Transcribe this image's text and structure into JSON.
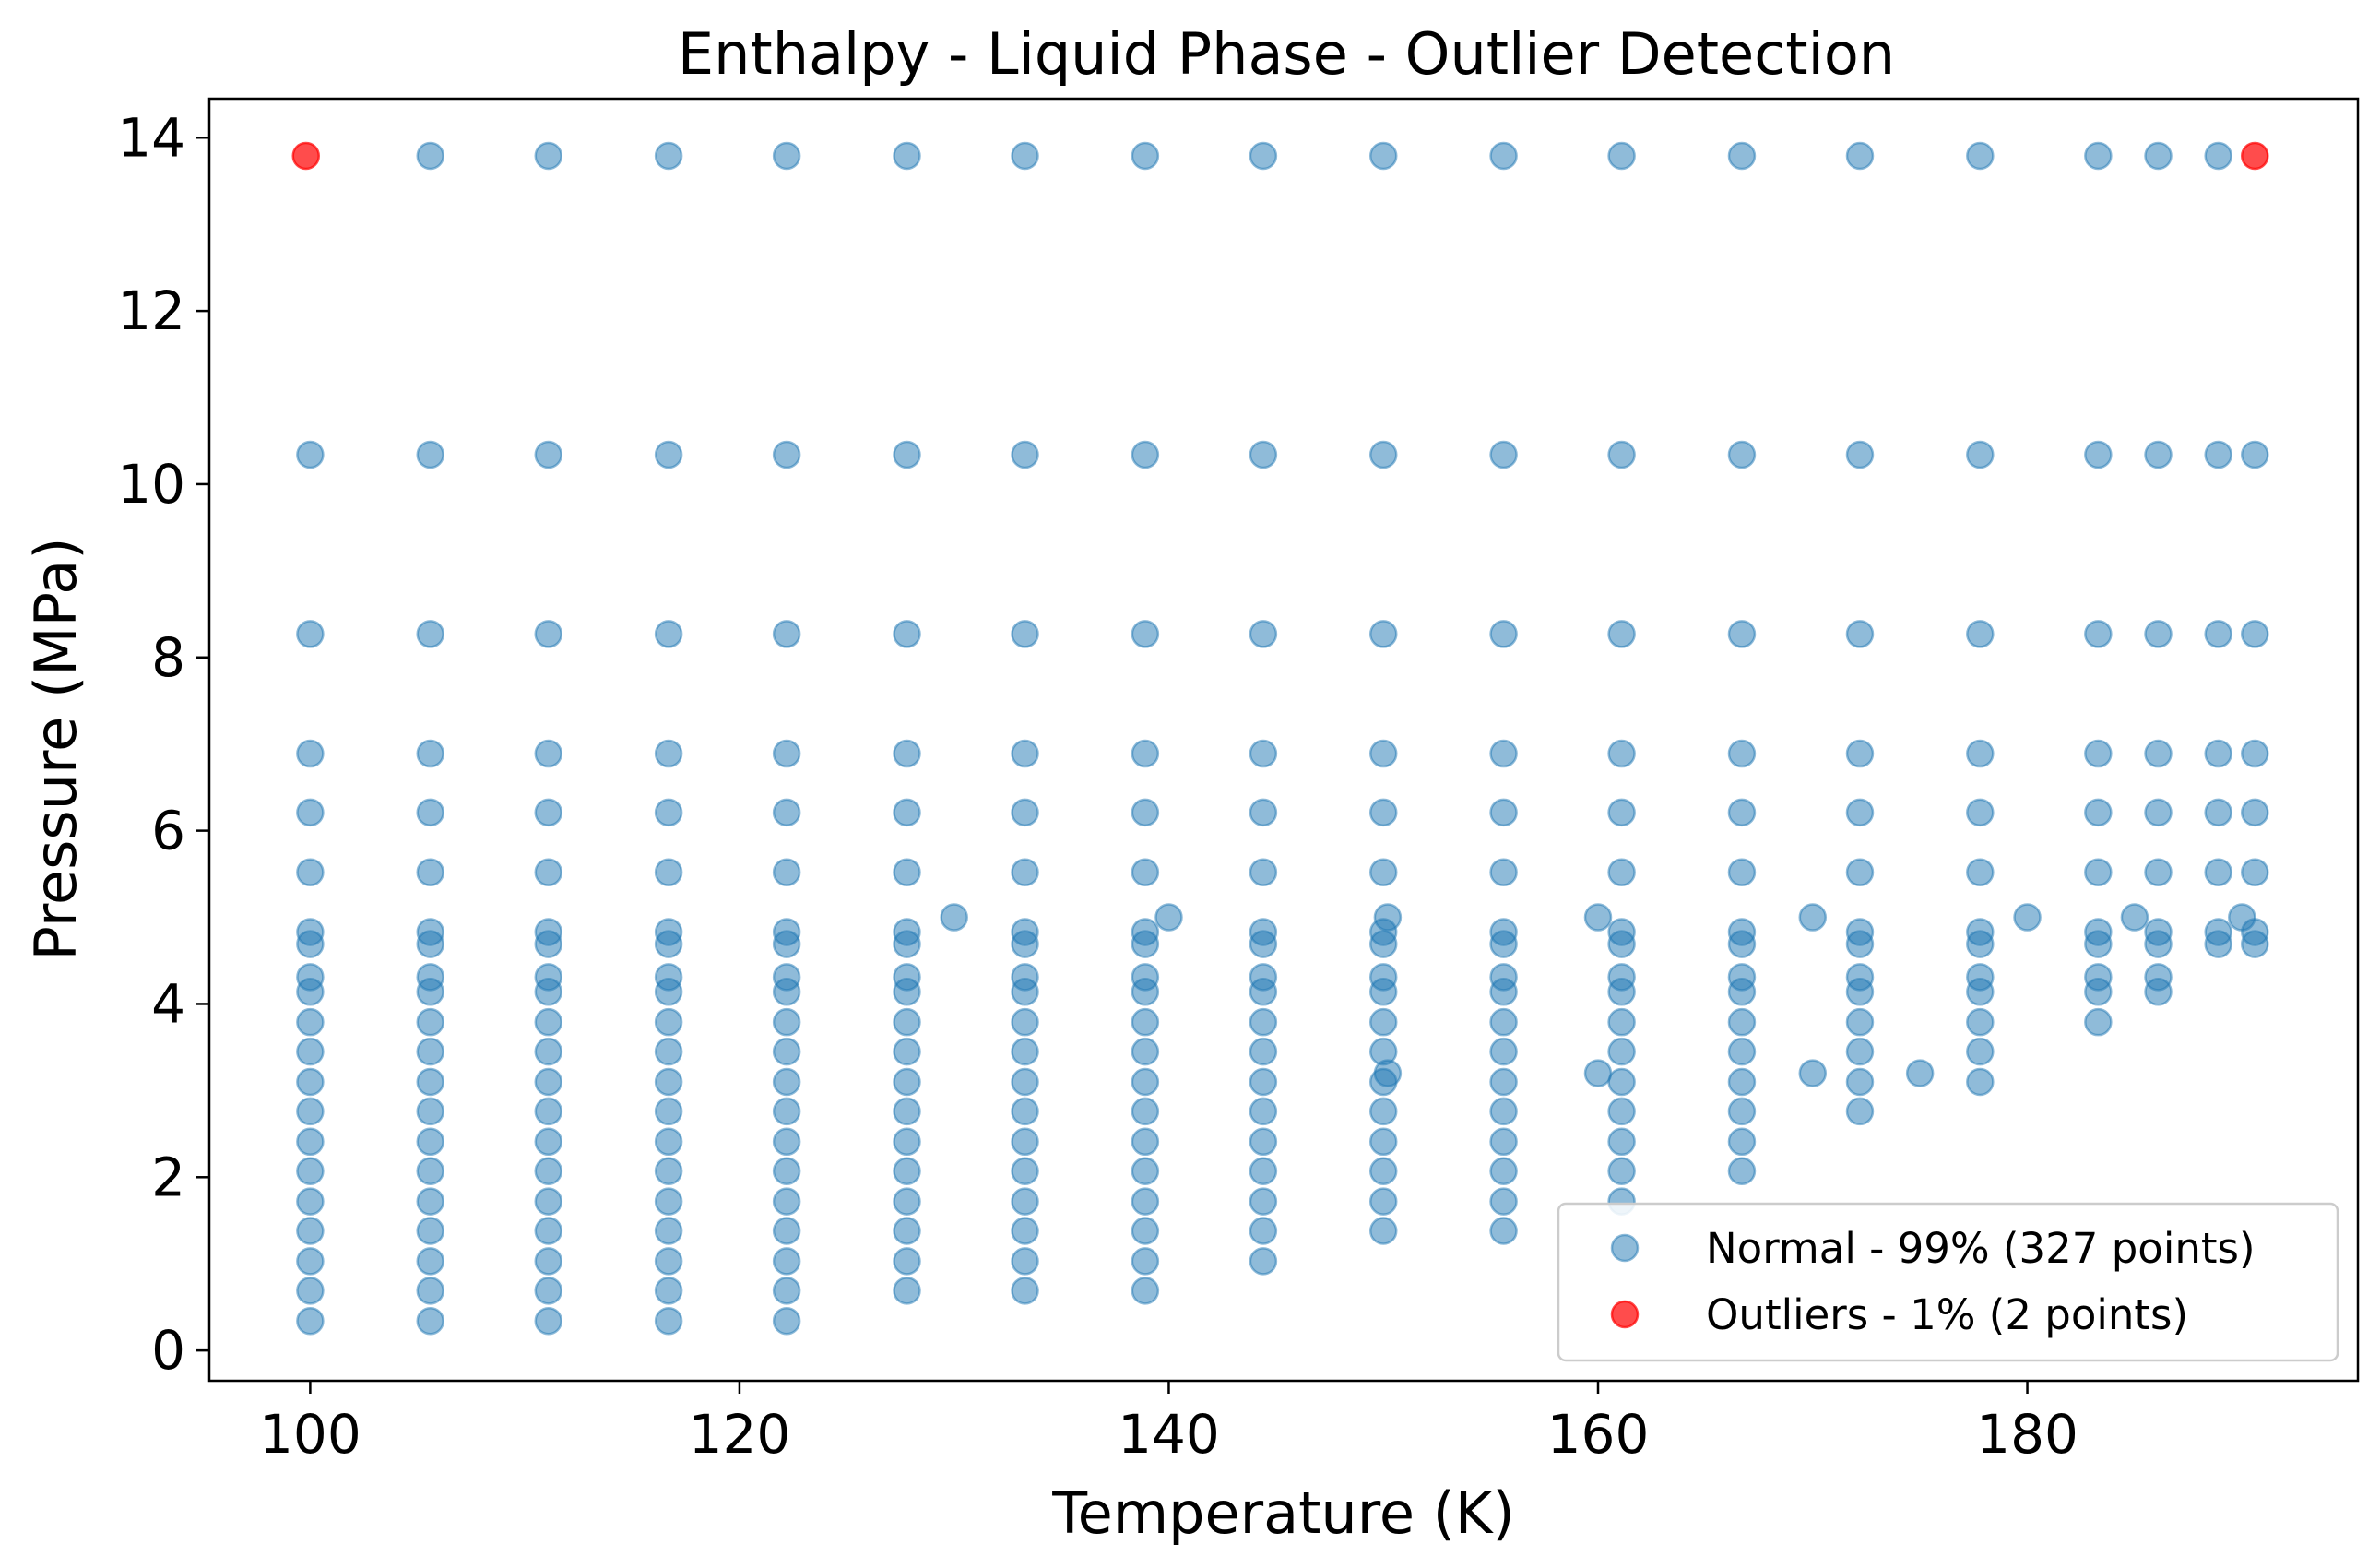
{
  "chart_data": {
    "type": "scatter",
    "title": "Enthalpy - Liquid Phase - Outlier Detection",
    "xlabel": "Temperature (K)",
    "ylabel": "Pressure (MPa)",
    "xlim": [
      95.3,
      195.4
    ],
    "ylim": [
      -0.35,
      14.45
    ],
    "xticks": [
      100,
      120,
      140,
      160,
      180
    ],
    "yticks": [
      0,
      2,
      4,
      6,
      8,
      10,
      12,
      14
    ],
    "grid": false,
    "legend_position": "lower-right",
    "colors": {
      "normal": "#1f77b4",
      "outlier": "#ff0000"
    },
    "series": [
      {
        "name": "Normal - 99% (327 points)",
        "columns": [
          {
            "x": 100.0,
            "y": [
              10.34,
              8.27,
              6.89,
              6.21,
              5.52,
              4.83,
              4.69,
              4.31,
              4.14,
              3.79,
              3.45,
              3.1,
              2.76,
              2.41,
              2.07,
              1.72,
              1.38,
              1.03,
              0.69,
              0.34
            ]
          },
          {
            "x": 105.6,
            "y": [
              13.79,
              10.34,
              8.27,
              6.89,
              6.21,
              5.52,
              4.83,
              4.69,
              4.31,
              4.14,
              3.79,
              3.45,
              3.1,
              2.76,
              2.41,
              2.07,
              1.72,
              1.38,
              1.03,
              0.69,
              0.34
            ]
          },
          {
            "x": 111.1,
            "y": [
              13.79,
              10.34,
              8.27,
              6.89,
              6.21,
              5.52,
              4.83,
              4.69,
              4.31,
              4.14,
              3.79,
              3.45,
              3.1,
              2.76,
              2.41,
              2.07,
              1.72,
              1.38,
              1.03,
              0.69,
              0.34
            ]
          },
          {
            "x": 116.7,
            "y": [
              13.79,
              10.34,
              8.27,
              6.89,
              6.21,
              5.52,
              4.83,
              4.69,
              4.31,
              4.14,
              3.79,
              3.45,
              3.1,
              2.76,
              2.41,
              2.07,
              1.72,
              1.38,
              1.03,
              0.69,
              0.34
            ]
          },
          {
            "x": 122.2,
            "y": [
              13.79,
              10.34,
              8.27,
              6.89,
              6.21,
              5.52,
              4.83,
              4.69,
              4.31,
              4.14,
              3.79,
              3.45,
              3.1,
              2.76,
              2.41,
              2.07,
              1.72,
              1.38,
              1.03,
              0.69,
              0.34
            ]
          },
          {
            "x": 127.8,
            "y": [
              13.79,
              10.34,
              8.27,
              6.89,
              6.21,
              5.52,
              4.83,
              4.69,
              4.31,
              4.14,
              3.79,
              3.45,
              3.1,
              2.76,
              2.41,
              2.07,
              1.72,
              1.38,
              1.03,
              0.69
            ]
          },
          {
            "x": 130.0,
            "y": [
              5.0
            ]
          },
          {
            "x": 133.3,
            "y": [
              13.79,
              10.34,
              8.27,
              6.89,
              6.21,
              5.52,
              4.83,
              4.69,
              4.31,
              4.14,
              3.79,
              3.45,
              3.1,
              2.76,
              2.41,
              2.07,
              1.72,
              1.38,
              1.03,
              0.69
            ]
          },
          {
            "x": 138.9,
            "y": [
              13.79,
              10.34,
              8.27,
              6.89,
              6.21,
              5.52,
              4.83,
              4.69,
              4.31,
              4.14,
              3.79,
              3.45,
              3.1,
              2.76,
              2.41,
              2.07,
              1.72,
              1.38,
              1.03,
              0.69
            ]
          },
          {
            "x": 140.0,
            "y": [
              5.0
            ]
          },
          {
            "x": 144.4,
            "y": [
              13.79,
              10.34,
              8.27,
              6.89,
              6.21,
              5.52,
              4.83,
              4.69,
              4.31,
              4.14,
              3.79,
              3.45,
              3.1,
              2.76,
              2.41,
              2.07,
              1.72,
              1.38,
              1.03
            ]
          },
          {
            "x": 150.0,
            "y": [
              13.79,
              10.34,
              8.27,
              6.89,
              6.21,
              5.52,
              4.83,
              4.69,
              4.31,
              4.14,
              3.79,
              3.45,
              3.1,
              2.76,
              2.41,
              2.07,
              1.72,
              1.38
            ]
          },
          {
            "x": 150.2,
            "y": [
              5.0,
              3.2
            ]
          },
          {
            "x": 155.6,
            "y": [
              13.79,
              10.34,
              8.27,
              6.89,
              6.21,
              5.52,
              4.83,
              4.69,
              4.31,
              4.14,
              3.79,
              3.45,
              3.1,
              2.76,
              2.41,
              2.07,
              1.72,
              1.38
            ]
          },
          {
            "x": 160.0,
            "y": [
              5.0,
              3.2
            ]
          },
          {
            "x": 161.1,
            "y": [
              13.79,
              10.34,
              8.27,
              6.89,
              6.21,
              5.52,
              4.83,
              4.69,
              4.31,
              4.14,
              3.79,
              3.45,
              3.1,
              2.76,
              2.41,
              2.07,
              1.72
            ]
          },
          {
            "x": 166.7,
            "y": [
              13.79,
              10.34,
              8.27,
              6.89,
              6.21,
              5.52,
              4.83,
              4.69,
              4.31,
              4.14,
              3.79,
              3.45,
              3.1,
              2.76,
              2.41,
              2.07
            ]
          },
          {
            "x": 170.0,
            "y": [
              5.0,
              3.2
            ]
          },
          {
            "x": 172.2,
            "y": [
              13.79,
              10.34,
              8.27,
              6.89,
              6.21,
              5.52,
              4.83,
              4.69,
              4.31,
              4.14,
              3.79,
              3.45,
              3.1,
              2.76
            ]
          },
          {
            "x": 175.0,
            "y": [
              3.2
            ]
          },
          {
            "x": 177.8,
            "y": [
              13.79,
              10.34,
              8.27,
              6.89,
              6.21,
              5.52,
              4.83,
              4.69,
              4.31,
              4.14,
              3.79,
              3.45,
              3.1
            ]
          },
          {
            "x": 180.0,
            "y": [
              5.0
            ]
          },
          {
            "x": 183.3,
            "y": [
              13.79,
              10.34,
              8.27,
              6.89,
              6.21,
              5.52,
              4.83,
              4.69,
              4.31,
              4.14,
              3.79
            ]
          },
          {
            "x": 185.0,
            "y": [
              5.0
            ]
          },
          {
            "x": 186.1,
            "y": [
              13.79,
              10.34,
              8.27,
              6.89,
              6.21,
              5.52,
              4.83,
              4.69,
              4.31,
              4.14
            ]
          },
          {
            "x": 188.9,
            "y": [
              13.79,
              10.34,
              8.27,
              6.89,
              6.21,
              5.52,
              4.83,
              4.69
            ]
          },
          {
            "x": 190.0,
            "y": [
              5.0
            ]
          },
          {
            "x": 190.6,
            "y": [
              10.34,
              8.27,
              6.89,
              6.21,
              5.52,
              4.83,
              4.69
            ]
          }
        ]
      },
      {
        "name": "Outliers - 1% (2 points)",
        "points": [
          {
            "x": 99.8,
            "y": 13.79
          },
          {
            "x": 190.6,
            "y": 13.79
          }
        ]
      }
    ]
  }
}
